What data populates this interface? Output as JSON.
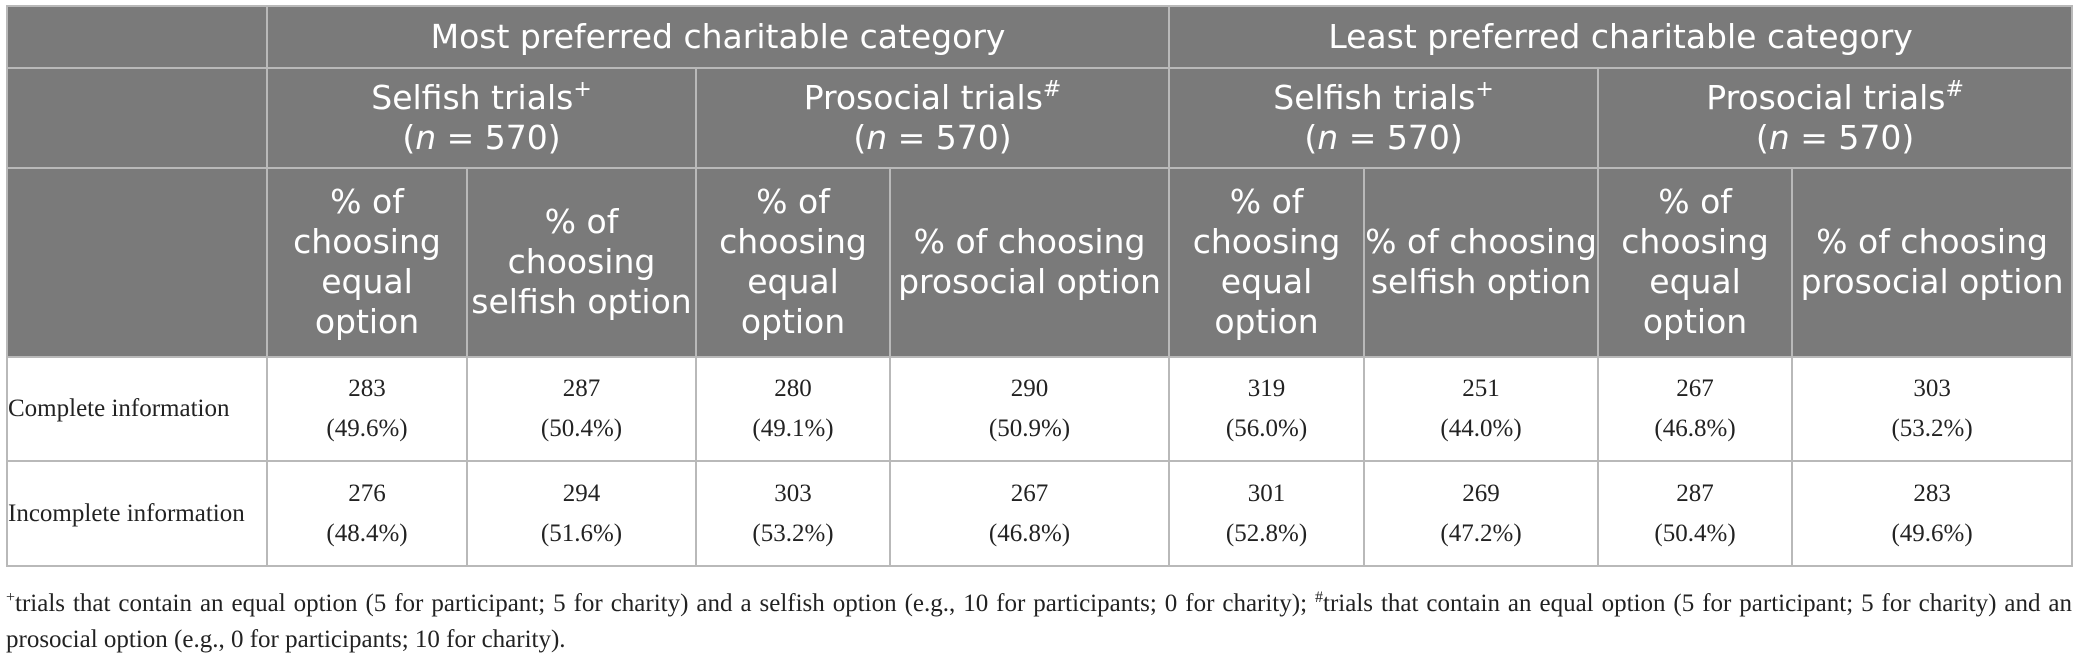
{
  "categories": [
    {
      "title": "Most preferred charitable category",
      "groups": [
        {
          "label": "Selfish trials",
          "mark": "+",
          "n_label": "n",
          "n_value": "= 570)",
          "col_a": "% of choosing equal option",
          "col_b": "% of choosing selfish option"
        },
        {
          "label": "Prosocial trials",
          "mark": "#",
          "n_label": "n",
          "n_value": "= 570)",
          "col_a": "% of choosing equal option",
          "col_b": "% of choosing prosocial option"
        }
      ]
    },
    {
      "title": "Least preferred charitable category",
      "groups": [
        {
          "label": "Selfish trials",
          "mark": "+",
          "n_label": "n",
          "n_value": "= 570)",
          "col_a": "% of choosing equal option",
          "col_b": "% of choosing selfish option"
        },
        {
          "label": "Prosocial trials",
          "mark": "#",
          "n_label": "n",
          "n_value": "= 570)",
          "col_a": "% of choosing equal option",
          "col_b": "% of choosing prosocial option"
        }
      ]
    }
  ],
  "rows": [
    {
      "label": "Complete information",
      "cells": [
        {
          "count": "283",
          "pct": "(49.6%)"
        },
        {
          "count": "287",
          "pct": "(50.4%)"
        },
        {
          "count": "280",
          "pct": "(49.1%)"
        },
        {
          "count": "290",
          "pct": "(50.9%)"
        },
        {
          "count": "319",
          "pct": "(56.0%)"
        },
        {
          "count": "251",
          "pct": "(44.0%)"
        },
        {
          "count": "267",
          "pct": "(46.8%)"
        },
        {
          "count": "303",
          "pct": "(53.2%)"
        }
      ]
    },
    {
      "label": "Incomplete information",
      "cells": [
        {
          "count": "276",
          "pct": "(48.4%)"
        },
        {
          "count": "294",
          "pct": "(51.6%)"
        },
        {
          "count": "303",
          "pct": "(53.2%)"
        },
        {
          "count": "267",
          "pct": "(46.8%)"
        },
        {
          "count": "301",
          "pct": "(52.8%)"
        },
        {
          "count": "269",
          "pct": "(47.2%)"
        },
        {
          "count": "287",
          "pct": "(50.4%)"
        },
        {
          "count": "283",
          "pct": "(49.6%)"
        }
      ]
    }
  ],
  "footnote": {
    "mark1": "+",
    "text1": "trials that contain an equal option (5 for participant; 5 for charity) and a selfish option (e.g., 10 for participants; 0 for charity);",
    "mark2": "#",
    "text2": "trials that contain an equal option (5 for participant; 5 for charity) and an prosocial option (e.g., 0 for participants; 10 for charity)."
  },
  "colors": {
    "header_bg": "#7a7a7a",
    "header_text": "#ffffff",
    "grid": "#b9b9b9",
    "body_text": "#222222"
  }
}
